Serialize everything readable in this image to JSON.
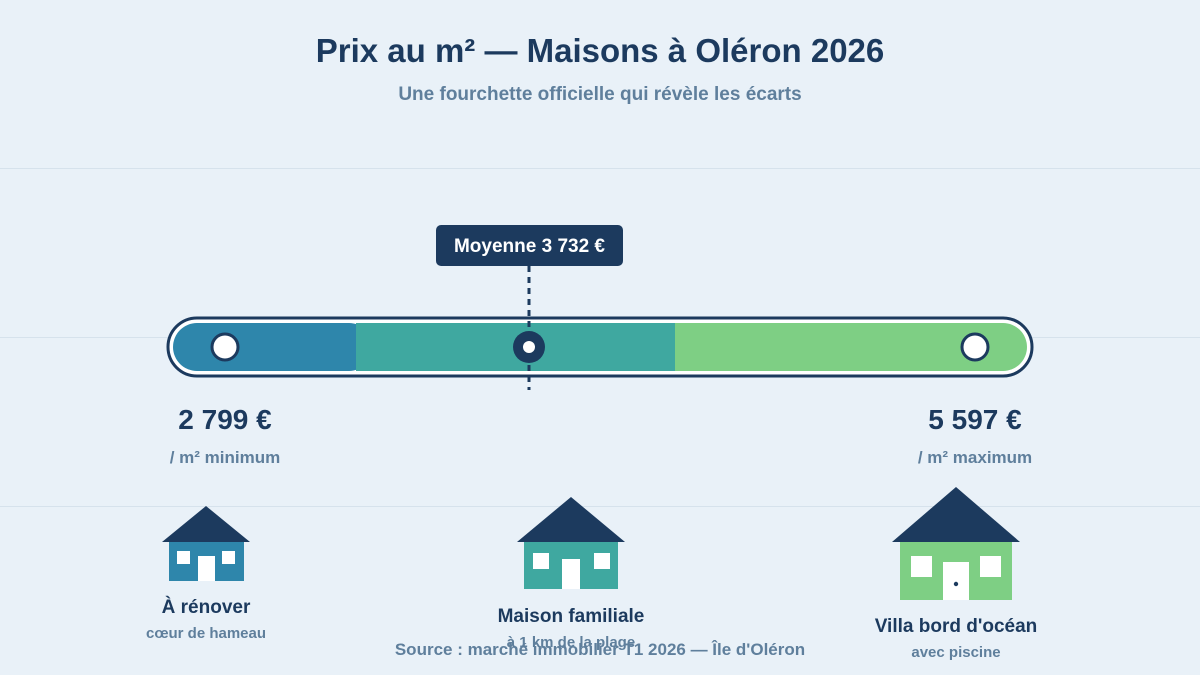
{
  "title": "Prix au m² — Maisons à Oléron 2026",
  "subtitle": "Une fourchette officielle qui révèle les écarts",
  "average_badge": "Moyenne 3 732 €",
  "min": {
    "value": "2 799 €",
    "label": "/ m² minimum"
  },
  "max": {
    "value": "5 597 €",
    "label": "/ m² maximum"
  },
  "houses": [
    {
      "label": "À rénover",
      "sub": "cœur de hameau"
    },
    {
      "label": "Maison familiale",
      "sub": "à 1 km de la plage"
    },
    {
      "label": "Villa bord d'océan",
      "sub": "avec piscine"
    }
  ],
  "source": "Source : marché immobilier T1 2026 — Île d'Oléron",
  "colors": {
    "segment_low": "#2e86ab",
    "segment_mid": "#3fa8a0",
    "segment_high": "#7ecf84",
    "dark": "#1c3a5e",
    "muted": "#5f7f9c",
    "background": "#e9f1f8"
  }
}
